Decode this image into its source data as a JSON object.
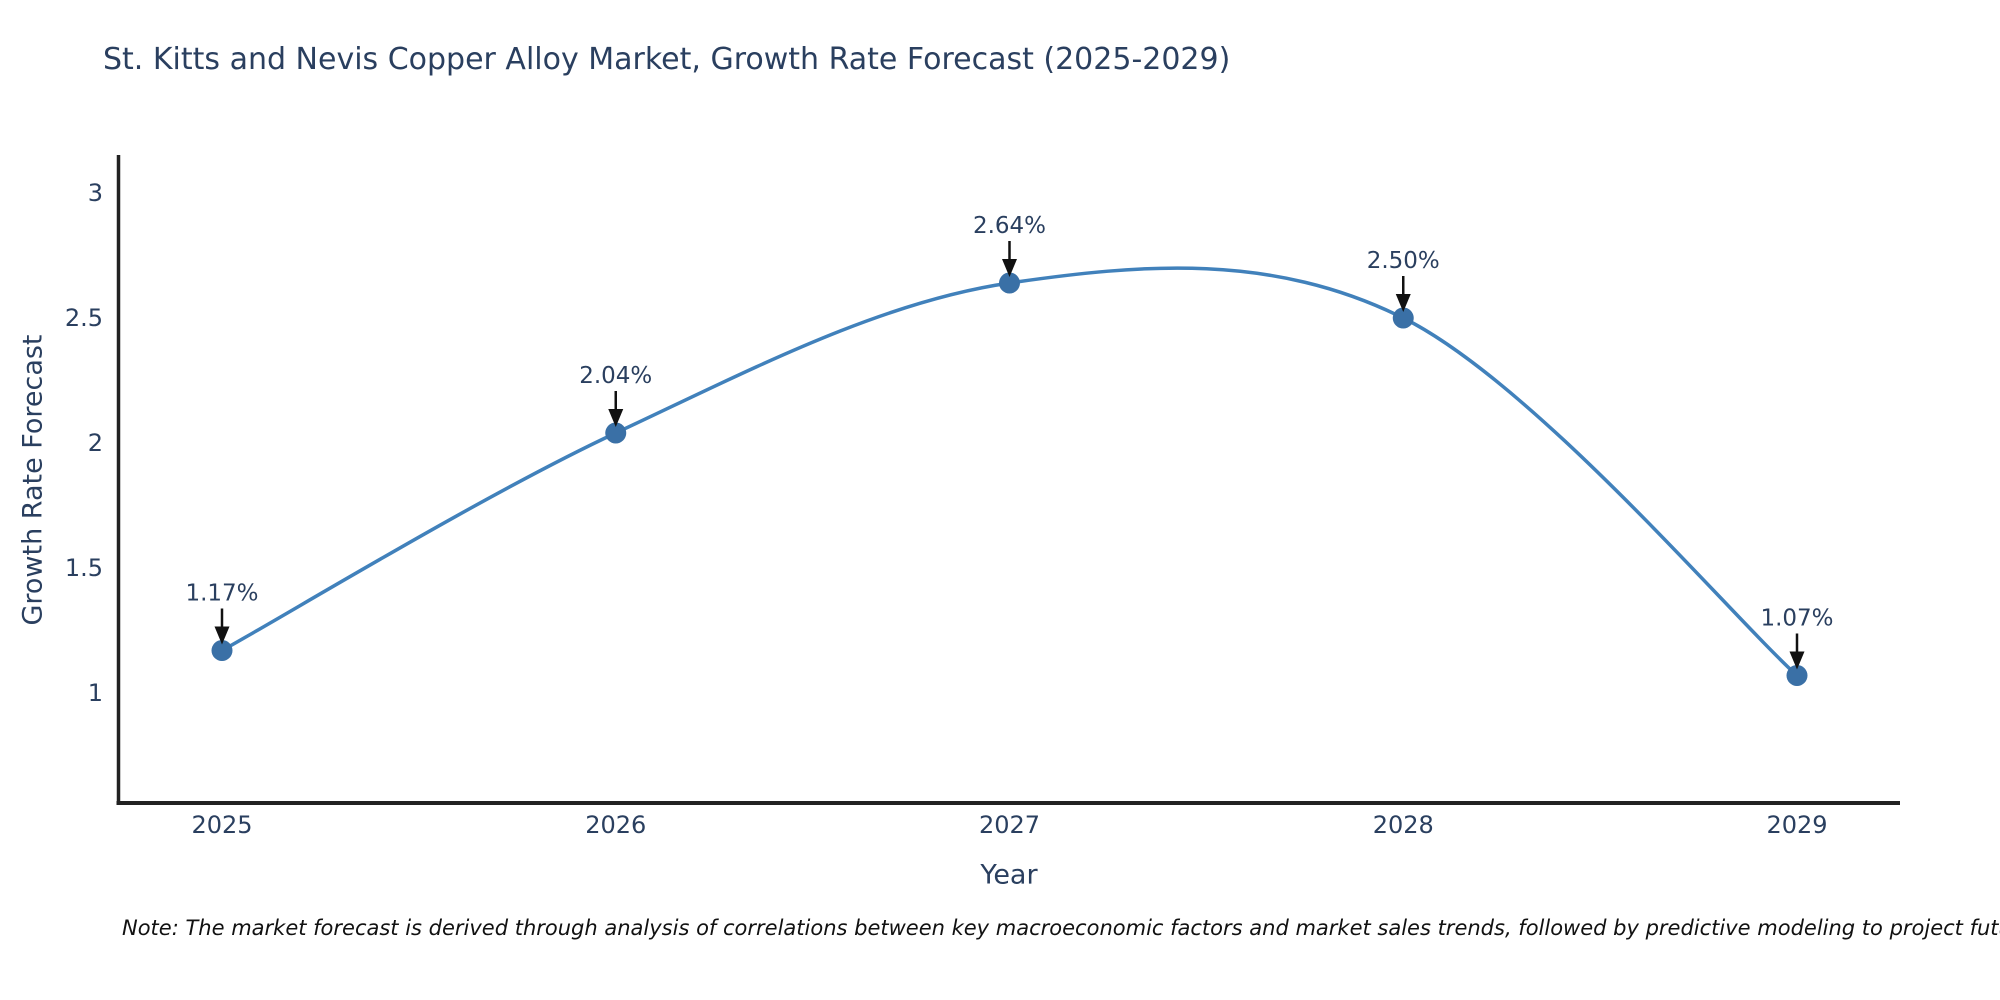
{
  "chart_data": {
    "type": "line",
    "title": "St. Kitts and Nevis Copper Alloy Market, Growth Rate Forecast (2025-2029)",
    "xlabel": "Year",
    "ylabel": "Growth Rate Forecast",
    "categories": [
      "2025",
      "2026",
      "2027",
      "2028",
      "2029"
    ],
    "series": [
      {
        "name": "Growth Rate Forecast",
        "values": [
          1.17,
          2.04,
          2.64,
          2.5,
          1.07
        ],
        "point_labels": [
          "1.17%",
          "2.04%",
          "2.64%",
          "2.50%",
          "1.07%"
        ]
      }
    ],
    "yticks": [
      3,
      2.5,
      2,
      1.5,
      1
    ],
    "ylim": [
      0.56,
      3.15
    ],
    "line_shape": "spline",
    "grid": false,
    "legend": "none",
    "colors": {
      "line": "#4181bb",
      "marker": "#3a70a6",
      "axis": "#222222",
      "tick_text": "#2a3f5f",
      "annotation_text": "#2a3f5f",
      "annotation_arrow": "#111111",
      "background": "#ffffff"
    }
  },
  "footer": {
    "note": "Note: The market forecast is derived through analysis of correlations between key macroeconomic factors and market sales trends, followed by predictive modeling to project future sales"
  }
}
